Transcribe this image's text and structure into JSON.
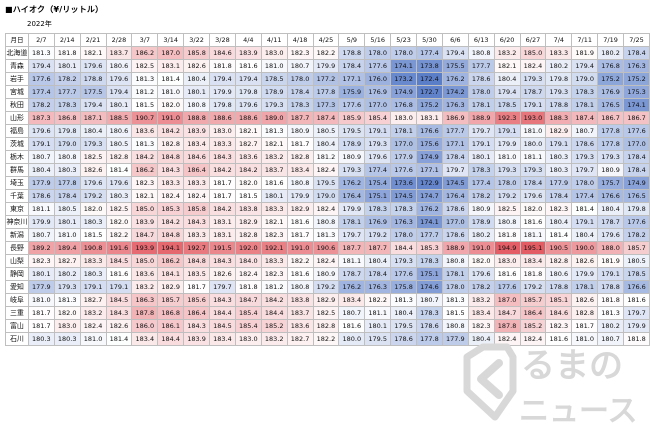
{
  "title": "■ハイオク（¥/リットル）",
  "year_label": "2022年",
  "pref_header": "月日",
  "dates": [
    "2/7",
    "2/14",
    "2/21",
    "2/28",
    "3/7",
    "3/14",
    "3/22",
    "3/28",
    "4/4",
    "4/11",
    "4/18",
    "4/25",
    "5/9",
    "5/16",
    "5/23",
    "5/30",
    "6/6",
    "6/13",
    "6/20",
    "6/27",
    "7/4",
    "7/11",
    "7/19",
    "7/25"
  ],
  "rows": [
    {
      "pref": "北海道",
      "v": [
        181.3,
        181.8,
        182.1,
        183.7,
        186.2,
        187.0,
        185.8,
        184.6,
        183.9,
        183.0,
        182.3,
        182.2,
        178.8,
        178.0,
        178.0,
        177.4,
        179.4,
        180.8,
        183.2,
        185.0,
        183.3,
        181.9,
        180.2,
        178.4
      ]
    },
    {
      "pref": "青森",
      "v": [
        179.4,
        180.1,
        179.6,
        180.6,
        182.5,
        183.1,
        182.6,
        181.8,
        181.6,
        181.0,
        180.7,
        179.9,
        178.4,
        177.6,
        174.1,
        173.8,
        175.5,
        177.7,
        182.1,
        182.4,
        180.2,
        179.4,
        176.8,
        176.3
      ]
    },
    {
      "pref": "岩手",
      "v": [
        177.6,
        178.2,
        178.8,
        179.6,
        181.3,
        181.4,
        180.4,
        179.4,
        179.4,
        178.5,
        178.0,
        177.2,
        177.1,
        176.0,
        173.2,
        172.4,
        176.2,
        178.6,
        180.4,
        179.3,
        179.8,
        179.0,
        175.2,
        175.2
      ]
    },
    {
      "pref": "宮城",
      "v": [
        177.4,
        177.7,
        177.5,
        179.4,
        181.2,
        181.0,
        180.1,
        179.9,
        179.8,
        178.9,
        178.4,
        177.8,
        175.9,
        176.9,
        174.9,
        172.7,
        174.2,
        178.0,
        179.4,
        178.7,
        179.3,
        178.3,
        176.9,
        175.3
      ]
    },
    {
      "pref": "秋田",
      "v": [
        178.2,
        178.3,
        179.4,
        180.1,
        181.5,
        182.0,
        180.8,
        179.8,
        179.6,
        179.3,
        178.3,
        177.3,
        177.6,
        177.0,
        176.8,
        175.2,
        176.3,
        178.1,
        178.5,
        179.1,
        178.8,
        178.1,
        176.5,
        174.1
      ]
    },
    {
      "pref": "山形",
      "v": [
        187.3,
        186.8,
        187.1,
        188.5,
        190.7,
        191.0,
        188.8,
        188.6,
        188.6,
        189.0,
        187.7,
        187.4,
        185.9,
        185.4,
        183.0,
        183.1,
        186.9,
        188.9,
        192.3,
        193.0,
        188.3,
        187.4,
        186.7,
        186.7
      ]
    },
    {
      "pref": "福島",
      "v": [
        179.6,
        179.8,
        180.4,
        180.6,
        183.6,
        184.2,
        183.9,
        183.0,
        182.1,
        181.3,
        180.9,
        180.5,
        179.5,
        179.1,
        178.1,
        176.6,
        177.7,
        179.7,
        179.1,
        181.0,
        182.9,
        180.7,
        177.8,
        177.6
      ]
    },
    {
      "pref": "茨城",
      "v": [
        179.1,
        179.0,
        179.3,
        180.5,
        181.3,
        182.8,
        183.4,
        183.3,
        182.7,
        182.1,
        181.7,
        180.4,
        178.9,
        179.3,
        177.0,
        175.6,
        177.1,
        179.1,
        179.9,
        180.0,
        179.1,
        178.6,
        177.8,
        177.0
      ]
    },
    {
      "pref": "栃木",
      "v": [
        180.7,
        180.8,
        182.5,
        182.8,
        184.2,
        184.8,
        184.6,
        184.3,
        183.6,
        183.2,
        182.8,
        181.2,
        180.9,
        179.6,
        177.9,
        174.9,
        178.4,
        180.1,
        181.0,
        181.1,
        180.3,
        179.3,
        179.3,
        178.4
      ]
    },
    {
      "pref": "群馬",
      "v": [
        180.4,
        180.3,
        182.6,
        181.4,
        186.2,
        184.3,
        186.4,
        184.2,
        184.2,
        183.7,
        183.4,
        182.4,
        179.3,
        177.4,
        177.6,
        177.1,
        179.7,
        178.3,
        179.3,
        179.3,
        180.3,
        179.7,
        180.9,
        178.4
      ]
    },
    {
      "pref": "埼玉",
      "v": [
        177.9,
        177.8,
        179.6,
        179.6,
        182.3,
        183.3,
        183.3,
        181.7,
        182.0,
        181.6,
        180.8,
        179.5,
        176.2,
        175.4,
        173.6,
        172.9,
        174.5,
        177.4,
        178.0,
        178.4,
        177.9,
        178.0,
        175.7,
        174.9
      ]
    },
    {
      "pref": "千葉",
      "v": [
        178.6,
        178.4,
        179.2,
        180.3,
        182.1,
        182.4,
        182.4,
        181.7,
        181.5,
        180.1,
        179.9,
        179.0,
        176.4,
        175.1,
        174.5,
        174.7,
        176.4,
        178.2,
        179.2,
        179.6,
        178.4,
        177.4,
        176.6,
        176.5
      ]
    },
    {
      "pref": "東京",
      "v": [
        181.1,
        180.5,
        182.0,
        182.5,
        185.0,
        185.3,
        185.8,
        184.2,
        183.8,
        183.3,
        182.9,
        182.4,
        179.9,
        178.3,
        178.3,
        176.2,
        178.6,
        180.9,
        182.5,
        182.0,
        182.3,
        181.4,
        180.4,
        179.8
      ]
    },
    {
      "pref": "神奈川",
      "v": [
        179.9,
        180.1,
        180.3,
        182.0,
        183.9,
        184.2,
        184.3,
        183.1,
        182.9,
        182.1,
        181.6,
        180.8,
        178.1,
        176.9,
        176.3,
        174.1,
        177.0,
        178.9,
        180.8,
        181.6,
        180.4,
        179.1,
        178.7,
        177.6
      ]
    },
    {
      "pref": "新潟",
      "v": [
        180.7,
        181.0,
        181.5,
        182.2,
        184.7,
        184.8,
        183.3,
        183.1,
        182.8,
        182.3,
        181.7,
        181.3,
        179.7,
        179.2,
        178.0,
        177.7,
        178.6,
        180.2,
        181.8,
        181.1,
        181.4,
        180.4,
        179.6,
        178.2
      ]
    },
    {
      "pref": "長野",
      "v": [
        189.2,
        189.4,
        190.8,
        191.6,
        193.9,
        194.1,
        192.7,
        191.5,
        192.0,
        192.1,
        191.0,
        190.6,
        187.7,
        187.7,
        184.4,
        185.3,
        188.9,
        191.0,
        194.9,
        195.1,
        190.5,
        190.0,
        188.0,
        185.7
      ]
    },
    {
      "pref": "山梨",
      "v": [
        182.3,
        182.7,
        183.3,
        184.5,
        185.0,
        186.2,
        184.8,
        184.3,
        184.0,
        183.3,
        182.2,
        182.4,
        181.1,
        180.4,
        179.3,
        178.3,
        180.8,
        182.0,
        183.0,
        183.4,
        182.8,
        182.6,
        181.9,
        180.5
      ]
    },
    {
      "pref": "静岡",
      "v": [
        180.1,
        180.2,
        180.3,
        181.6,
        183.6,
        184.1,
        183.5,
        182.6,
        182.4,
        182.3,
        181.6,
        180.9,
        178.7,
        178.4,
        177.6,
        175.1,
        178.1,
        179.6,
        181.6,
        181.8,
        180.6,
        179.9,
        179.1,
        178.5
      ]
    },
    {
      "pref": "愛知",
      "v": [
        177.9,
        179.3,
        179.1,
        179.1,
        183.2,
        182.9,
        181.7,
        179.7,
        181.8,
        181.2,
        180.8,
        179.2,
        176.2,
        176.3,
        175.8,
        174.6,
        178.0,
        178.2,
        177.6,
        179.2,
        178.8,
        178.1,
        178.8,
        176.6
      ]
    },
    {
      "pref": "岐阜",
      "v": [
        181.0,
        181.3,
        182.7,
        184.5,
        186.3,
        185.7,
        185.6,
        184.3,
        184.7,
        184.2,
        183.8,
        182.9,
        183.4,
        182.2,
        181.3,
        180.7,
        181.3,
        183.2,
        187.0,
        185.7,
        185.1,
        182.6,
        181.8,
        181.6
      ]
    },
    {
      "pref": "三重",
      "v": [
        181.7,
        182.0,
        183.2,
        184.3,
        187.8,
        186.8,
        186.4,
        184.4,
        185.4,
        184.4,
        183.7,
        182.5,
        180.7,
        181.1,
        180.4,
        178.3,
        181.5,
        183.4,
        184.7,
        186.4,
        184.6,
        182.8,
        181.3,
        179.7
      ]
    },
    {
      "pref": "富山",
      "v": [
        181.7,
        183.0,
        182.4,
        182.6,
        186.0,
        186.1,
        184.3,
        184.5,
        185.4,
        185.2,
        183.6,
        182.8,
        181.6,
        180.1,
        179.5,
        178.6,
        180.8,
        182.3,
        187.8,
        185.2,
        182.3,
        181.7,
        180.2,
        179.9
      ]
    },
    {
      "pref": "石川",
      "v": [
        180.3,
        180.3,
        181.0,
        181.4,
        183.4,
        184.4,
        183.9,
        183.4,
        183.0,
        183.2,
        182.7,
        182.2,
        180.0,
        179.5,
        178.6,
        177.8,
        177.9,
        180.4,
        182.4,
        182.4,
        181.6,
        181.0,
        180.7,
        181.8
      ]
    }
  ],
  "scale": {
    "low": 172.4,
    "mid": 181.5,
    "high": 195.1,
    "low_color": "#5b7ec9",
    "mid_color": "#ffffff",
    "high_color": "#e35c64"
  },
  "logo": {
    "text_top": "るまの",
    "text_bottom": "ニュース",
    "mark_color": "#d8d8d8"
  }
}
